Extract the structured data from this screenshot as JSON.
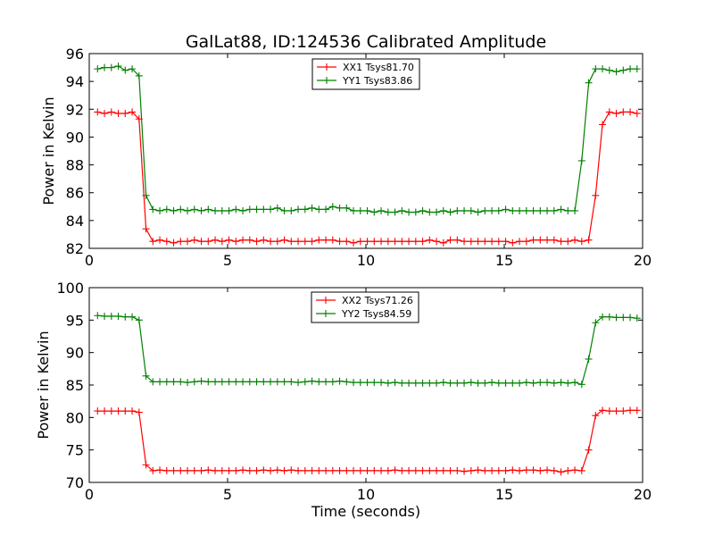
{
  "title": "GalLat88, ID:124536 Calibrated Amplitude",
  "chart_data": [
    {
      "type": "line",
      "title": "GalLat88, ID:124536 Calibrated Amplitude",
      "xlabel": "",
      "ylabel": "Power in Kelvin",
      "xlim": [
        0,
        20
      ],
      "ylim": [
        82,
        96
      ],
      "xticks": [
        0,
        5,
        10,
        15,
        20
      ],
      "yticks": [
        82,
        84,
        86,
        88,
        90,
        92,
        94,
        96
      ],
      "legend_position": "top-center",
      "grid": false,
      "x": [
        0.3,
        0.55,
        0.8,
        1.05,
        1.3,
        1.55,
        1.8,
        2.05,
        2.3,
        2.55,
        2.8,
        3.05,
        3.3,
        3.55,
        3.8,
        4.05,
        4.3,
        4.55,
        4.8,
        5.05,
        5.3,
        5.55,
        5.8,
        6.05,
        6.3,
        6.55,
        6.8,
        7.05,
        7.3,
        7.55,
        7.8,
        8.05,
        8.3,
        8.55,
        8.8,
        9.05,
        9.3,
        9.55,
        9.8,
        10.05,
        10.3,
        10.55,
        10.8,
        11.05,
        11.3,
        11.55,
        11.8,
        12.05,
        12.3,
        12.55,
        12.8,
        13.05,
        13.3,
        13.55,
        13.8,
        14.05,
        14.3,
        14.55,
        14.8,
        15.05,
        15.3,
        15.55,
        15.8,
        16.05,
        16.3,
        16.55,
        16.8,
        17.05,
        17.3,
        17.55,
        17.8,
        18.05,
        18.3,
        18.55,
        18.8,
        19.05,
        19.3,
        19.55,
        19.8
      ],
      "series": [
        {
          "name": "XX1 Tsys81.70",
          "color": "#ff0000",
          "values": [
            91.8,
            91.7,
            91.8,
            91.7,
            91.7,
            91.8,
            91.3,
            83.4,
            82.5,
            82.6,
            82.5,
            82.4,
            82.5,
            82.5,
            82.6,
            82.5,
            82.5,
            82.6,
            82.5,
            82.6,
            82.5,
            82.6,
            82.6,
            82.5,
            82.6,
            82.5,
            82.5,
            82.6,
            82.5,
            82.5,
            82.5,
            82.5,
            82.6,
            82.6,
            82.6,
            82.5,
            82.5,
            82.4,
            82.5,
            82.5,
            82.5,
            82.5,
            82.5,
            82.5,
            82.5,
            82.5,
            82.5,
            82.5,
            82.6,
            82.5,
            82.4,
            82.6,
            82.6,
            82.5,
            82.5,
            82.5,
            82.5,
            82.5,
            82.5,
            82.5,
            82.4,
            82.5,
            82.5,
            82.6,
            82.6,
            82.6,
            82.6,
            82.5,
            82.5,
            82.6,
            82.5,
            82.6,
            85.8,
            90.9,
            91.8,
            91.7,
            91.8,
            91.8,
            91.7
          ]
        },
        {
          "name": "YY1 Tsys83.86",
          "color": "#008000",
          "values": [
            94.9,
            95.0,
            95.0,
            95.1,
            94.8,
            94.9,
            94.4,
            85.8,
            84.8,
            84.7,
            84.8,
            84.7,
            84.8,
            84.7,
            84.8,
            84.7,
            84.8,
            84.7,
            84.7,
            84.7,
            84.8,
            84.7,
            84.8,
            84.8,
            84.8,
            84.8,
            84.9,
            84.7,
            84.7,
            84.8,
            84.8,
            84.9,
            84.8,
            84.8,
            85.0,
            84.9,
            84.9,
            84.7,
            84.7,
            84.7,
            84.6,
            84.7,
            84.6,
            84.6,
            84.7,
            84.6,
            84.6,
            84.7,
            84.6,
            84.6,
            84.7,
            84.6,
            84.7,
            84.7,
            84.7,
            84.6,
            84.7,
            84.7,
            84.7,
            84.8,
            84.7,
            84.7,
            84.7,
            84.7,
            84.7,
            84.7,
            84.7,
            84.8,
            84.7,
            84.7,
            88.3,
            93.9,
            94.9,
            94.9,
            94.8,
            94.7,
            94.8,
            94.9,
            94.9
          ]
        }
      ]
    },
    {
      "type": "line",
      "title": "",
      "xlabel": "Time (seconds)",
      "ylabel": "Power in Kelvin",
      "xlim": [
        0,
        20
      ],
      "ylim": [
        70,
        100
      ],
      "xticks": [
        0,
        5,
        10,
        15,
        20
      ],
      "yticks": [
        70,
        75,
        80,
        85,
        90,
        95,
        100
      ],
      "legend_position": "top-center",
      "grid": false,
      "x": [
        0.3,
        0.55,
        0.8,
        1.05,
        1.3,
        1.55,
        1.8,
        2.05,
        2.3,
        2.55,
        2.8,
        3.05,
        3.3,
        3.55,
        3.8,
        4.05,
        4.3,
        4.55,
        4.8,
        5.05,
        5.3,
        5.55,
        5.8,
        6.05,
        6.3,
        6.55,
        6.8,
        7.05,
        7.3,
        7.55,
        7.8,
        8.05,
        8.3,
        8.55,
        8.8,
        9.05,
        9.3,
        9.55,
        9.8,
        10.05,
        10.3,
        10.55,
        10.8,
        11.05,
        11.3,
        11.55,
        11.8,
        12.05,
        12.3,
        12.55,
        12.8,
        13.05,
        13.3,
        13.55,
        13.8,
        14.05,
        14.3,
        14.55,
        14.8,
        15.05,
        15.3,
        15.55,
        15.8,
        16.05,
        16.3,
        16.55,
        16.8,
        17.05,
        17.3,
        17.55,
        17.8,
        18.05,
        18.3,
        18.55,
        18.8,
        19.05,
        19.3,
        19.55,
        19.8
      ],
      "series": [
        {
          "name": "XX2 Tsys71.26",
          "color": "#ff0000",
          "values": [
            81.0,
            81.0,
            81.0,
            81.0,
            81.0,
            81.0,
            80.8,
            72.7,
            71.8,
            71.9,
            71.8,
            71.8,
            71.8,
            71.8,
            71.8,
            71.8,
            71.9,
            71.8,
            71.8,
            71.8,
            71.8,
            71.9,
            71.8,
            71.8,
            71.9,
            71.8,
            71.9,
            71.8,
            71.9,
            71.8,
            71.8,
            71.8,
            71.8,
            71.8,
            71.8,
            71.8,
            71.8,
            71.8,
            71.8,
            71.8,
            71.8,
            71.8,
            71.8,
            71.9,
            71.8,
            71.8,
            71.8,
            71.8,
            71.8,
            71.8,
            71.8,
            71.8,
            71.8,
            71.7,
            71.8,
            71.9,
            71.8,
            71.8,
            71.8,
            71.8,
            71.9,
            71.8,
            71.9,
            71.9,
            71.8,
            71.9,
            71.8,
            71.6,
            71.8,
            71.9,
            71.8,
            75.0,
            80.3,
            81.1,
            81.0,
            81.0,
            81.0,
            81.1,
            81.1
          ]
        },
        {
          "name": "YY2 Tsys84.59",
          "color": "#008000",
          "values": [
            95.7,
            95.6,
            95.6,
            95.6,
            95.5,
            95.5,
            95.0,
            86.4,
            85.5,
            85.5,
            85.5,
            85.5,
            85.5,
            85.4,
            85.5,
            85.6,
            85.5,
            85.5,
            85.5,
            85.5,
            85.5,
            85.5,
            85.5,
            85.5,
            85.5,
            85.5,
            85.5,
            85.5,
            85.5,
            85.4,
            85.5,
            85.6,
            85.5,
            85.5,
            85.5,
            85.6,
            85.5,
            85.4,
            85.4,
            85.4,
            85.4,
            85.4,
            85.3,
            85.4,
            85.3,
            85.3,
            85.3,
            85.3,
            85.3,
            85.3,
            85.4,
            85.3,
            85.3,
            85.3,
            85.4,
            85.3,
            85.3,
            85.4,
            85.3,
            85.3,
            85.3,
            85.3,
            85.4,
            85.3,
            85.4,
            85.4,
            85.3,
            85.4,
            85.3,
            85.4,
            85.1,
            89.0,
            94.6,
            95.5,
            95.5,
            95.4,
            95.4,
            95.4,
            95.3
          ]
        }
      ]
    }
  ]
}
